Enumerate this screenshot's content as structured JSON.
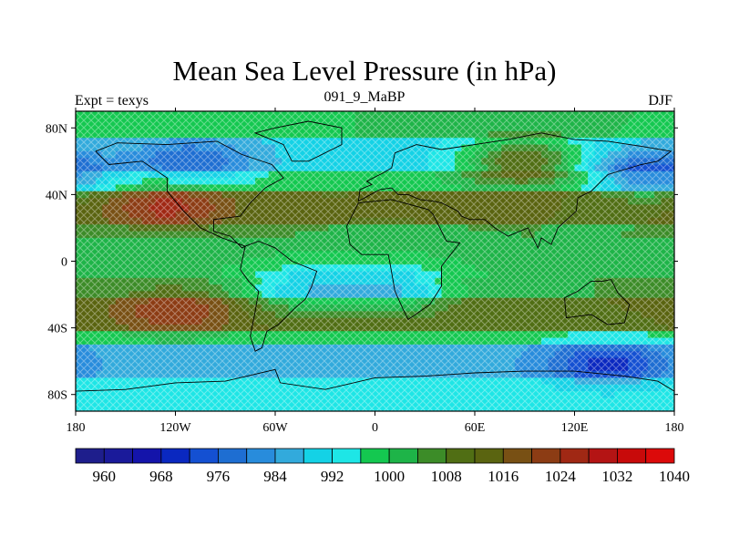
{
  "title": "Mean Sea Level Pressure (in hPa)",
  "left_label": "Expt = texys",
  "center_label": "091_9_MaBP",
  "right_label": "DJF",
  "chart_data": {
    "type": "heatmap",
    "projection": "cylindrical-equidistant",
    "xlim": [
      -180,
      180
    ],
    "ylim": [
      -90,
      90
    ],
    "x_ticks": [
      {
        "value": -180,
        "label": "180"
      },
      {
        "value": -120,
        "label": "120W"
      },
      {
        "value": -60,
        "label": "60W"
      },
      {
        "value": 0,
        "label": "0"
      },
      {
        "value": 60,
        "label": "60E"
      },
      {
        "value": 120,
        "label": "120E"
      },
      {
        "value": 180,
        "label": "180"
      }
    ],
    "y_ticks": [
      {
        "value": 80,
        "label": "80N"
      },
      {
        "value": 40,
        "label": "40N"
      },
      {
        "value": 0,
        "label": "0"
      },
      {
        "value": -40,
        "label": "40S"
      },
      {
        "value": -80,
        "label": "80S"
      }
    ],
    "colorbar": {
      "colors": [
        "#1e1e8c",
        "#1a1a9a",
        "#1414aa",
        "#0a28c0",
        "#1450d2",
        "#1e6ed2",
        "#288cdc",
        "#32aadc",
        "#14d2e6",
        "#1ee6e6",
        "#14c850",
        "#1eb448",
        "#3c8c28",
        "#506e14",
        "#5a6410",
        "#785014",
        "#8c3c14",
        "#a02814",
        "#b41414",
        "#c80a0a",
        "#dc0a0a"
      ],
      "tick_labels": [
        "960",
        "968",
        "976",
        "984",
        "992",
        "1000",
        "1008",
        "1016",
        "1024",
        "1032",
        "1040"
      ]
    },
    "field_features": [
      {
        "kind": "high",
        "lon": -125,
        "lat": 33,
        "value": 1026
      },
      {
        "kind": "high",
        "lon": -120,
        "lat": -30,
        "value": 1024
      },
      {
        "kind": "high",
        "lon": 90,
        "lat": 60,
        "value": 1012
      },
      {
        "kind": "low",
        "lon": -110,
        "lat": 60,
        "value": 976
      },
      {
        "kind": "low",
        "lon": 165,
        "lat": 52,
        "value": 980
      },
      {
        "kind": "low",
        "lon": 140,
        "lat": -62,
        "value": 970
      },
      {
        "kind": "low",
        "lon": 10,
        "lat": -18,
        "value": 988
      },
      {
        "kind": "low",
        "lon": -45,
        "lat": -18,
        "value": 990
      }
    ]
  }
}
